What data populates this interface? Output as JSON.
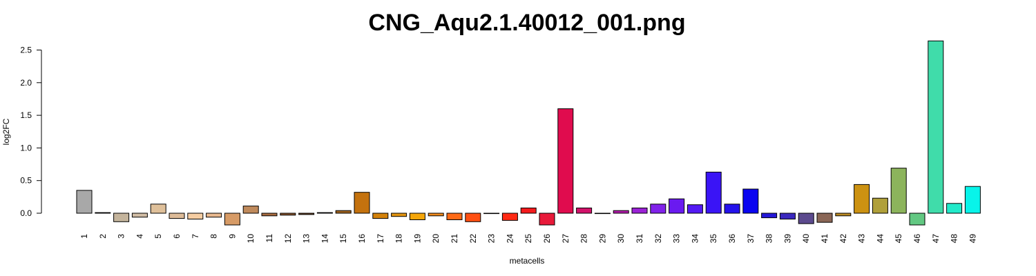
{
  "chart_data": {
    "type": "bar",
    "title": "CNG_Aqu2.1.40012_001.png",
    "xlabel": "metacells",
    "ylabel": "log2FC",
    "ylim": [
      -0.25,
      2.65
    ],
    "yticks": [
      "0.0",
      "0.5",
      "1.0",
      "1.5",
      "2.0",
      "2.5"
    ],
    "grid": false,
    "categories": [
      "1",
      "2",
      "3",
      "4",
      "5",
      "6",
      "7",
      "8",
      "9",
      "10",
      "11",
      "12",
      "13",
      "14",
      "15",
      "16",
      "17",
      "18",
      "19",
      "20",
      "21",
      "22",
      "23",
      "24",
      "25",
      "26",
      "27",
      "28",
      "29",
      "30",
      "31",
      "32",
      "33",
      "34",
      "35",
      "36",
      "37",
      "38",
      "39",
      "40",
      "41",
      "42",
      "43",
      "44",
      "45",
      "46",
      "47",
      "48",
      "49"
    ],
    "values": [
      0.35,
      0.01,
      -0.13,
      -0.06,
      0.14,
      -0.08,
      -0.09,
      -0.06,
      -0.18,
      0.11,
      -0.04,
      -0.03,
      -0.02,
      0.01,
      0.04,
      0.32,
      -0.08,
      -0.05,
      -0.1,
      -0.04,
      -0.1,
      -0.13,
      0.0,
      -0.11,
      0.08,
      -0.18,
      1.6,
      0.08,
      0.0,
      0.04,
      0.08,
      0.14,
      0.22,
      0.13,
      0.63,
      0.14,
      0.37,
      -0.07,
      -0.09,
      -0.16,
      -0.14,
      -0.04,
      0.44,
      0.23,
      0.69,
      -0.18,
      2.64,
      0.15,
      0.41
    ],
    "colors": [
      "#A8A8A8",
      "#CCCCCC",
      "#C4B49C",
      "#D0BCA4",
      "#DFC09A",
      "#DDBB98",
      "#F5CDA2",
      "#E8B88E",
      "#D79B66",
      "#BF8A5C",
      "#A96B3F",
      "#8C5630",
      "#6C4020",
      "#4A2E1A",
      "#9F6420",
      "#C4720E",
      "#D4820A",
      "#E29410",
      "#F5A60A",
      "#F08A1C",
      "#FF6A16",
      "#FF5012",
      "#FF3A0E",
      "#FF2A14",
      "#F41A1C",
      "#E81A3A",
      "#E00C4E",
      "#D2126A",
      "#C5148A",
      "#B41CAC",
      "#9B22D6",
      "#8122EA",
      "#6A1AF0",
      "#541AF4",
      "#3A14F6",
      "#2412EC",
      "#0A04F0",
      "#2418D8",
      "#3A28BE",
      "#5C4A8E",
      "#8A6656",
      "#BB8A24",
      "#CC9212",
      "#B0A03A",
      "#8CB45C",
      "#62C882",
      "#40DCAA",
      "#22EACA",
      "#08F4EA"
    ]
  }
}
